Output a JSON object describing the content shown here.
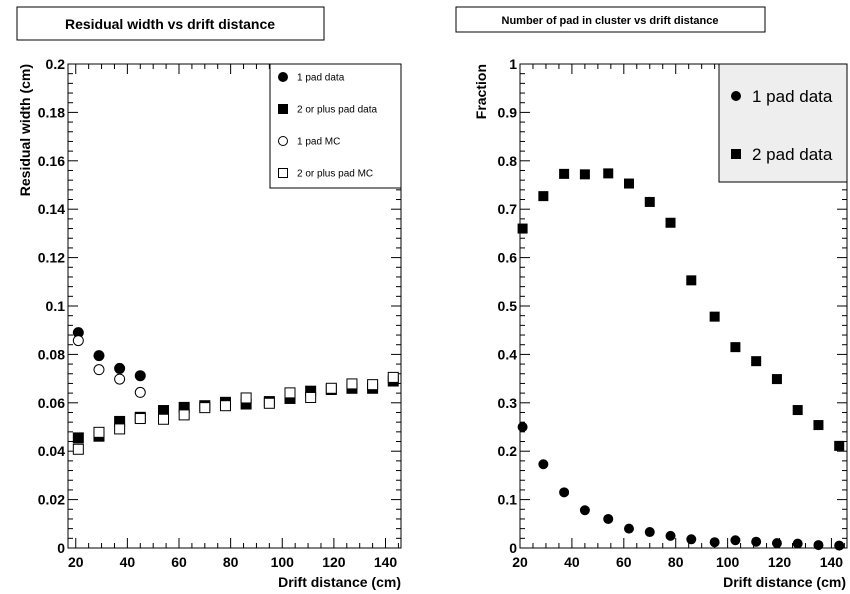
{
  "chart_data": [
    {
      "type": "scatter",
      "title": "Residual width vs drift distance",
      "xlabel": "Drift distance (cm)",
      "ylabel": "Residual width (cm)",
      "xlim": [
        17,
        146
      ],
      "ylim": [
        0,
        0.2
      ],
      "xticks": [
        20,
        40,
        60,
        80,
        100,
        120,
        140
      ],
      "yticks": [
        0,
        0.02,
        0.04,
        0.06,
        0.08,
        0.1,
        0.12,
        0.14,
        0.16,
        0.18,
        0.2
      ],
      "xtick_labels": [
        "20",
        "40",
        "60",
        "80",
        "100",
        "120",
        "140"
      ],
      "ytick_labels": [
        "0",
        "0.02",
        "0.04",
        "0.06",
        "0.08",
        "0.1",
        "0.12",
        "0.14",
        "0.16",
        "0.18",
        "0.2"
      ],
      "grid": false,
      "legend_position": "top-right",
      "series": [
        {
          "name": "1 pad data",
          "marker": "filled-circle",
          "x": [
            21,
            29,
            37,
            45
          ],
          "y": [
            0.089,
            0.0795,
            0.0742,
            0.0712
          ]
        },
        {
          "name": "2 or plus pad data",
          "marker": "filled-square",
          "x": [
            21,
            29,
            37,
            45,
            54,
            62,
            70,
            78,
            86,
            95,
            103,
            111,
            119,
            127,
            135,
            143
          ],
          "y": [
            0.0455,
            0.0462,
            0.0523,
            0.054,
            0.0568,
            0.0581,
            0.0588,
            0.0602,
            0.0595,
            0.0605,
            0.0618,
            0.0648,
            0.0655,
            0.066,
            0.066,
            0.069
          ]
        },
        {
          "name": "1 pad MC",
          "marker": "open-circle",
          "x": [
            21,
            29,
            37,
            45
          ],
          "y": [
            0.0857,
            0.0737,
            0.0698,
            0.0643
          ]
        },
        {
          "name": "2 or plus pad MC",
          "marker": "open-square",
          "x": [
            21,
            29,
            37,
            45,
            54,
            62,
            70,
            78,
            86,
            95,
            103,
            111,
            119,
            127,
            135,
            143
          ],
          "y": [
            0.0408,
            0.0478,
            0.0492,
            0.0535,
            0.0532,
            0.055,
            0.058,
            0.0588,
            0.062,
            0.0598,
            0.0641,
            0.0622,
            0.066,
            0.0678,
            0.0675,
            0.0705
          ]
        }
      ]
    },
    {
      "type": "scatter",
      "title": "Number of pad in cluster vs drift distance",
      "xlabel": "Drift distance (cm)",
      "ylabel": "Fraction",
      "xlim": [
        20,
        146
      ],
      "ylim": [
        0,
        1
      ],
      "xticks": [
        20,
        40,
        60,
        80,
        100,
        120,
        140
      ],
      "yticks": [
        0,
        0.1,
        0.2,
        0.3,
        0.4,
        0.5,
        0.6,
        0.7,
        0.8,
        0.9,
        1
      ],
      "xtick_labels": [
        "20",
        "40",
        "60",
        "80",
        "100",
        "120",
        "140"
      ],
      "ytick_labels": [
        "0",
        "0.1",
        "0.2",
        "0.3",
        "0.4",
        "0.5",
        "0.6",
        "0.7",
        "0.8",
        "0.9",
        "1"
      ],
      "grid": false,
      "legend_position": "top-right",
      "series": [
        {
          "name": "1 pad data",
          "marker": "filled-circle",
          "x": [
            21,
            29,
            37,
            45,
            54,
            62,
            70,
            78,
            86,
            95,
            103,
            111,
            119,
            127,
            135,
            143
          ],
          "y": [
            0.25,
            0.173,
            0.115,
            0.078,
            0.06,
            0.04,
            0.033,
            0.025,
            0.018,
            0.012,
            0.016,
            0.013,
            0.01,
            0.009,
            0.006,
            0.005
          ]
        },
        {
          "name": "2 pad data",
          "marker": "filled-square",
          "x": [
            21,
            29,
            37,
            45,
            54,
            62,
            70,
            78,
            86,
            95,
            103,
            111,
            119,
            127,
            135,
            143
          ],
          "y": [
            0.66,
            0.727,
            0.773,
            0.772,
            0.774,
            0.753,
            0.715,
            0.672,
            0.553,
            0.478,
            0.415,
            0.386,
            0.349,
            0.285,
            0.254,
            0.211
          ]
        }
      ]
    }
  ]
}
